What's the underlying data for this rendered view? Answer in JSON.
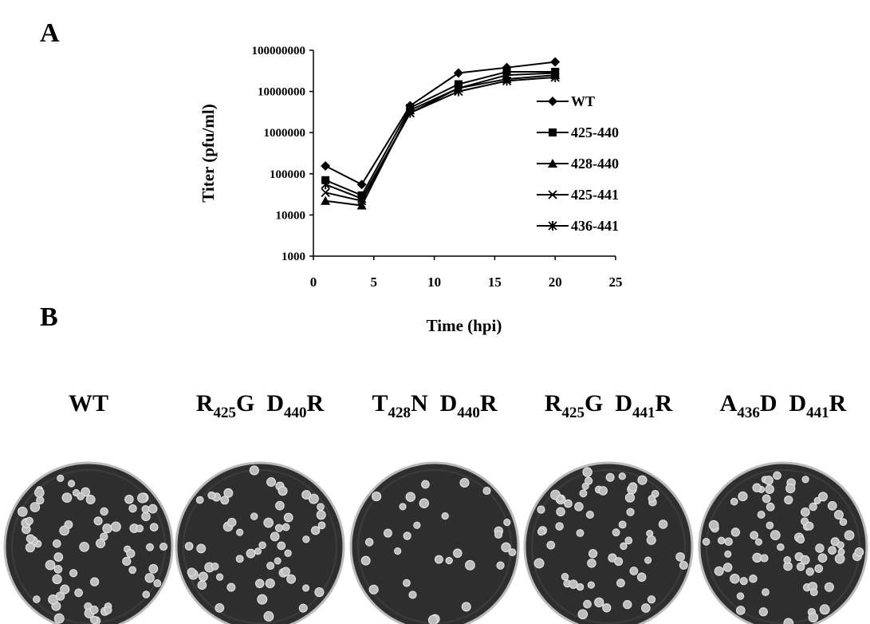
{
  "panels": {
    "a": "A",
    "b": "B"
  },
  "chart_data": {
    "type": "line",
    "x_label": "Time (hpi)",
    "y_label": "Titer (pfu/ml)",
    "x": [
      1,
      4,
      8,
      12,
      16,
      20
    ],
    "xlim": [
      0,
      25
    ],
    "xticks": [
      0,
      5,
      10,
      15,
      20,
      25
    ],
    "ylim": [
      1000,
      100000000
    ],
    "yticks": [
      1000,
      10000,
      100000,
      1000000,
      10000000,
      100000000
    ],
    "log_y": true,
    "grid": false,
    "legend": "right",
    "series": [
      {
        "name": "WT",
        "color": "#000000",
        "marker": "diamond",
        "values": [
          155000,
          55000,
          4500000,
          28000000,
          38000000,
          52000000
        ]
      },
      {
        "name": "425-440",
        "color": "#000000",
        "marker": "square",
        "values": [
          70000,
          30000,
          4000000,
          15000000,
          30000000,
          30000000
        ]
      },
      {
        "name": "428-440",
        "color": "#000000",
        "marker": "triangle",
        "values": [
          22000,
          17000,
          3500000,
          12000000,
          20000000,
          25000000
        ]
      },
      {
        "name": "425-441",
        "color": "#000000",
        "marker": "x",
        "values": [
          35000,
          22000,
          3000000,
          12000000,
          25000000,
          28000000
        ]
      },
      {
        "name": "436-441",
        "color": "#000000",
        "marker": "asterisk",
        "values": [
          55000,
          25000,
          3000000,
          10000000,
          18000000,
          22000000
        ]
      }
    ]
  },
  "plates": [
    [
      {
        "text": "WT"
      }
    ],
    [
      {
        "text": "R"
      },
      {
        "sub": "425"
      },
      {
        "text": "G  D"
      },
      {
        "sub": "440"
      },
      {
        "text": "R"
      }
    ],
    [
      {
        "text": "T"
      },
      {
        "sub": "428"
      },
      {
        "text": "N  D"
      },
      {
        "sub": "440"
      },
      {
        "text": "R"
      }
    ],
    [
      {
        "text": "R"
      },
      {
        "sub": "425"
      },
      {
        "text": "G  D"
      },
      {
        "sub": "441"
      },
      {
        "text": "R"
      }
    ],
    [
      {
        "text": "A"
      },
      {
        "sub": "436"
      },
      {
        "text": "D  D"
      },
      {
        "sub": "441"
      },
      {
        "text": "R"
      }
    ]
  ]
}
